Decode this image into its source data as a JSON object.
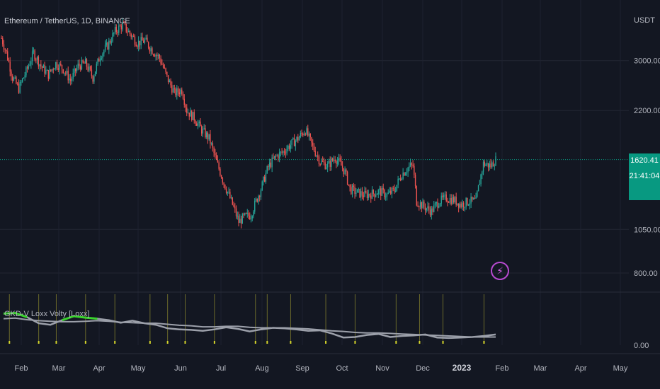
{
  "header": {
    "symbol": "Ethereum / TetherUS, 1D, BINANCE",
    "currency": "USDT"
  },
  "price_tag": {
    "price": "1620.41",
    "countdown": "21:41:04"
  },
  "indicator": {
    "title": "GKD-V Loxx Volty [Loxx]",
    "ylabels": [
      "0.00"
    ]
  },
  "colors": {
    "background": "#131722",
    "up": "#26a69a",
    "down": "#ef5350",
    "volty_line": "#9ca0aa",
    "signal": "#39d32c",
    "marker": "#d6d62a",
    "price_line": "#089981"
  },
  "icons": {
    "event": "lightning-icon"
  },
  "chart_data": [
    {
      "type": "candlestick",
      "title": "Ethereum / TetherUS, 1D, BINANCE",
      "y_scale": "log",
      "y_ticks": [
        3000,
        2200,
        1620.41,
        1050,
        800
      ],
      "y_tick_labels": [
        "3000.00",
        "2200.00",
        "1620.41",
        "1050.00",
        "800.00"
      ],
      "x_ticks": [
        "Feb",
        "Mar",
        "Apr",
        "May",
        "Jun",
        "Jul",
        "Aug",
        "Sep",
        "Oct",
        "Nov",
        "Dec",
        "2023",
        "Feb",
        "Mar",
        "Apr",
        "May"
      ],
      "ylim": [
        720,
        4150
      ],
      "last_price": 1620.41,
      "price_path": [
        [
          0,
          3450
        ],
        [
          4,
          3150
        ],
        [
          9,
          2700
        ],
        [
          14,
          2520
        ],
        [
          20,
          2800
        ],
        [
          26,
          3150
        ],
        [
          32,
          2900
        ],
        [
          38,
          2750
        ],
        [
          44,
          2950
        ],
        [
          50,
          2850
        ],
        [
          56,
          2650
        ],
        [
          62,
          2900
        ],
        [
          68,
          2950
        ],
        [
          74,
          2700
        ],
        [
          80,
          3100
        ],
        [
          86,
          3300
        ],
        [
          92,
          3600
        ],
        [
          98,
          3750
        ],
        [
          104,
          3550
        ],
        [
          110,
          3350
        ],
        [
          116,
          3400
        ],
        [
          122,
          3200
        ],
        [
          128,
          3050
        ],
        [
          134,
          2700
        ],
        [
          140,
          2450
        ],
        [
          146,
          2500
        ],
        [
          150,
          2200
        ],
        [
          156,
          2100
        ],
        [
          162,
          1950
        ],
        [
          168,
          1850
        ],
        [
          174,
          1600
        ],
        [
          180,
          1400
        ],
        [
          186,
          1250
        ],
        [
          192,
          1100
        ],
        [
          196,
          1130
        ],
        [
          202,
          1150
        ],
        [
          206,
          1250
        ],
        [
          210,
          1350
        ],
        [
          216,
          1550
        ],
        [
          222,
          1650
        ],
        [
          228,
          1700
        ],
        [
          234,
          1780
        ],
        [
          240,
          1850
        ],
        [
          246,
          1950
        ],
        [
          252,
          1750
        ],
        [
          258,
          1600
        ],
        [
          264,
          1560
        ],
        [
          270,
          1640
        ],
        [
          274,
          1580
        ],
        [
          278,
          1500
        ],
        [
          282,
          1350
        ],
        [
          288,
          1320
        ],
        [
          294,
          1300
        ],
        [
          300,
          1310
        ],
        [
          306,
          1330
        ],
        [
          312,
          1300
        ],
        [
          318,
          1340
        ],
        [
          324,
          1480
        ],
        [
          330,
          1550
        ],
        [
          333,
          1560
        ],
        [
          336,
          1250
        ],
        [
          342,
          1210
        ],
        [
          348,
          1175
        ],
        [
          354,
          1250
        ],
        [
          360,
          1275
        ],
        [
          366,
          1260
        ],
        [
          372,
          1225
        ],
        [
          378,
          1250
        ],
        [
          384,
          1250
        ],
        [
          390,
          1580
        ],
        [
          396,
          1560
        ],
        [
          400,
          1620
        ]
      ]
    },
    {
      "type": "line",
      "title": "GKD-V Loxx Volty [Loxx]",
      "series": [
        {
          "values": [
            62,
            63,
            55,
            43,
            40,
            49,
            57,
            54,
            52,
            49,
            44,
            48,
            43,
            40,
            33,
            31,
            30,
            28,
            31,
            35,
            32,
            27,
            31,
            34,
            33,
            31,
            28,
            29,
            23,
            15,
            16,
            20,
            22,
            16,
            18,
            19,
            21,
            15,
            14,
            15,
            16,
            18,
            21
          ]
        },
        {
          "values": [
            52,
            53,
            50,
            48,
            47,
            46,
            46,
            47,
            48,
            47,
            45,
            44,
            43,
            43,
            41,
            39,
            38,
            36,
            36,
            37,
            37,
            35,
            34,
            34,
            34,
            33,
            32,
            30,
            28,
            27,
            25,
            24,
            24,
            23,
            22,
            21,
            20,
            19,
            18,
            17,
            16,
            16,
            16
          ]
        }
      ],
      "ylim": [
        0,
        100
      ]
    }
  ]
}
